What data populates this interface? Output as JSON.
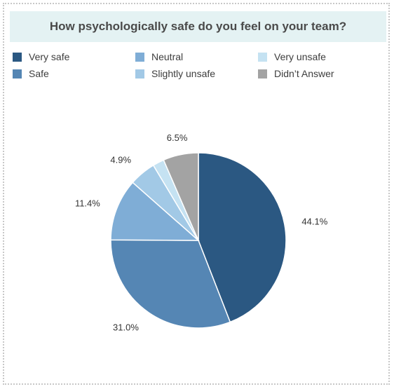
{
  "chart_data": {
    "type": "pie",
    "title": "How psychologically safe do you feel on your team?",
    "slices": [
      {
        "label": "Very safe",
        "value": 44.1,
        "display": "44.1%",
        "color": "#2b5882"
      },
      {
        "label": "Safe",
        "value": 31.0,
        "display": "31.0%",
        "color": "#5586b4"
      },
      {
        "label": "Neutral",
        "value": 11.4,
        "display": "11.4%",
        "color": "#7fadd6"
      },
      {
        "label": "Slightly unsafe",
        "value": 4.9,
        "display": "4.9%",
        "color": "#a2c9e6"
      },
      {
        "label": "Very unsafe",
        "value": 2.1,
        "display": "",
        "color": "#c5e2f2"
      },
      {
        "label": "Didn’t Answer",
        "value": 6.5,
        "display": "6.5%",
        "color": "#a3a3a3"
      }
    ],
    "legend_order": [
      "Very safe",
      "Safe",
      "Neutral",
      "Slightly unsafe",
      "Very unsafe",
      "Didn’t Answer"
    ],
    "legend_position": "top"
  }
}
